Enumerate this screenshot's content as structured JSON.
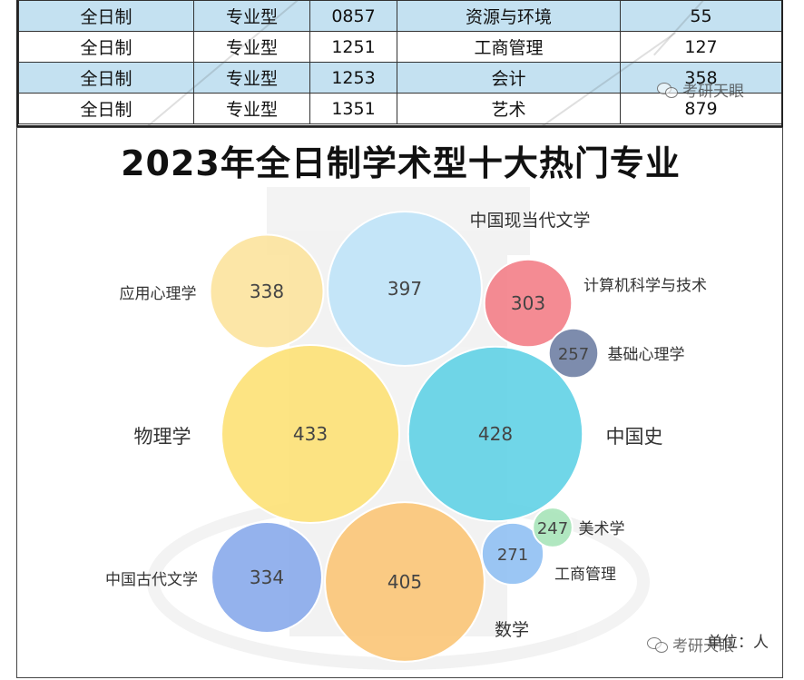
{
  "table": {
    "rows": [
      [
        "全日制",
        "专业型",
        "0857",
        "资源与环境",
        "55"
      ],
      [
        "全日制",
        "专业型",
        "1251",
        "工商管理",
        "127"
      ],
      [
        "全日制",
        "专业型",
        "1253",
        "会计",
        "358"
      ],
      [
        "全日制",
        "专业型",
        "1351",
        "艺术",
        "879"
      ]
    ]
  },
  "watermark": {
    "wechat_text": "考研天眼"
  },
  "chart_data": {
    "type": "bubble",
    "title": "2023年全日制学术型十大热门专业",
    "unit_label": "单位：人",
    "bubbles": [
      {
        "name": "物理学",
        "value": 433,
        "color": "#FDE072"
      },
      {
        "name": "中国史",
        "value": 428,
        "color": "#5CD0E5"
      },
      {
        "name": "数学",
        "value": 405,
        "color": "#FBC473"
      },
      {
        "name": "中国现当代文学",
        "value": 397,
        "color": "#BDE3F8"
      },
      {
        "name": "应用心理学",
        "value": 338,
        "color": "#FCE39B"
      },
      {
        "name": "中国古代文学",
        "value": 334,
        "color": "#85A7EA"
      },
      {
        "name": "计算机科学与技术",
        "value": 303,
        "color": "#F27B84"
      },
      {
        "name": "工商管理",
        "value": 271,
        "color": "#8DBEF2"
      },
      {
        "name": "基础心理学",
        "value": 257,
        "color": "#6B7CA2"
      },
      {
        "name": "美术学",
        "value": 247,
        "color": "#A5E4B7"
      }
    ]
  }
}
